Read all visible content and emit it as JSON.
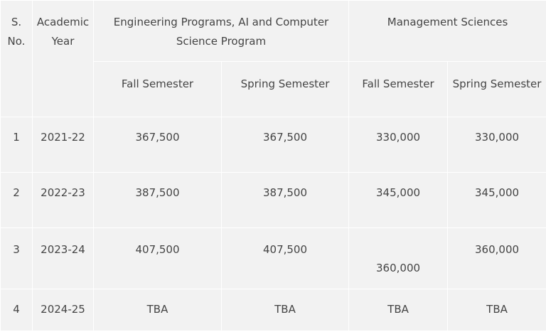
{
  "headers": {
    "sno": "S. No.",
    "year": "Academic Year",
    "engineering": "Engineering Programs, AI and Computer Science Program",
    "management": "Management Sciences",
    "eng_fall": "Fall Semester",
    "eng_spring": "Spring Semester",
    "mgmt_fall": "Fall Semester",
    "mgmt_spring": "Spring Semester"
  },
  "rows": [
    {
      "sno": "1",
      "year": "2021-22",
      "eng_fall": "367,500",
      "eng_spring": "367,500",
      "mgmt_fall": "330,000",
      "mgmt_spring": "330,000"
    },
    {
      "sno": "2",
      "year": "2022-23",
      "eng_fall": "387,500",
      "eng_spring": "387,500",
      "mgmt_fall": "345,000",
      "mgmt_spring": "345,000"
    },
    {
      "sno": "3",
      "year": "2023-24",
      "eng_fall": "407,500",
      "eng_spring": "407,500",
      "mgmt_fall": "360,000",
      "mgmt_spring": "360,000"
    },
    {
      "sno": "4",
      "year": "2024-25",
      "eng_fall": "TBA",
      "eng_spring": "TBA",
      "mgmt_fall": "TBA",
      "mgmt_spring": "TBA"
    }
  ],
  "colors": {
    "cell_background": "#f2f2f2",
    "text": "#444444"
  }
}
